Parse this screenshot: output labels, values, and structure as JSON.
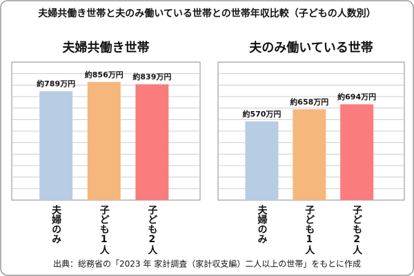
{
  "title": "夫婦共働き世帯と夫のみ働いている世帯との世帯年収比較（子どもの人数別）",
  "source": "出典：総務省の「2023 年 家計調査（家計収支編）二人以上の世帯」をもとに作成",
  "chart_data": [
    {
      "type": "bar",
      "title": "夫婦共働き世帯",
      "categories": [
        "夫婦のみ",
        "子ども1人",
        "子ども2人"
      ],
      "values": [
        789,
        856,
        839
      ],
      "value_labels": [
        "約789万円",
        "約856万円",
        "約839万円"
      ],
      "colors": [
        "#b7cde3",
        "#f5b77c",
        "#fa7c7c"
      ],
      "ylim": [
        0,
        1000
      ],
      "grid": true
    },
    {
      "type": "bar",
      "title": "夫のみ働いている世帯",
      "categories": [
        "夫婦のみ",
        "子ども1人",
        "子ども2人"
      ],
      "values": [
        570,
        658,
        694
      ],
      "value_labels": [
        "約570万円",
        "約658万円",
        "約694万円"
      ],
      "colors": [
        "#b7cde3",
        "#f5b77c",
        "#fa7c7c"
      ],
      "ylim": [
        0,
        1000
      ],
      "grid": true
    }
  ]
}
